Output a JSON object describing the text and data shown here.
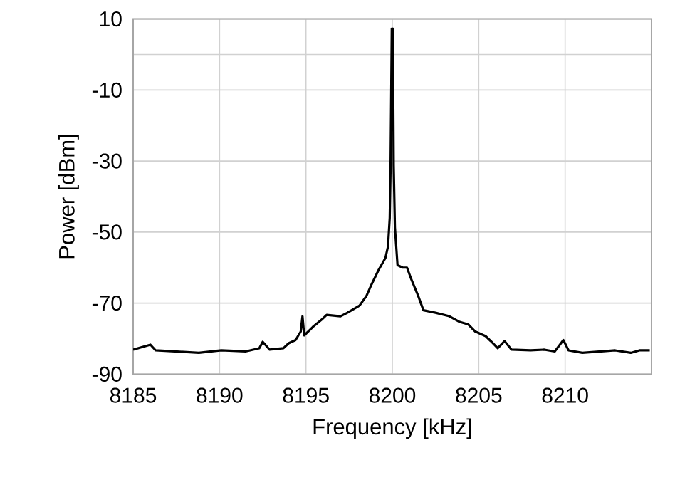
{
  "chart_data": {
    "type": "line",
    "xlabel": "Frequency [kHz]",
    "ylabel": "Power [dBm]",
    "xlim": [
      8185,
      8215
    ],
    "ylim": [
      -90,
      10
    ],
    "xticks": [
      8185,
      8190,
      8195,
      8200,
      8205,
      8210
    ],
    "yticks": [
      10,
      {
        "value": 0,
        "label": null
      },
      -10,
      -30,
      -50,
      -70,
      -90
    ],
    "grid": true,
    "marker": "none",
    "line_style": "solid",
    "series": [
      {
        "color": "#000000",
        "x": [
          8185.0,
          8186.0,
          8186.3,
          8187.4,
          8188.8,
          8190.1,
          8191.5,
          8192.3,
          8192.5,
          8192.9,
          8193.7,
          8194.0,
          8194.4,
          8194.7,
          8194.8,
          8194.9,
          8195.4,
          8195.9,
          8196.2,
          8197.0,
          8197.4,
          8198.1,
          8198.5,
          8198.8,
          8199.2,
          8199.6,
          8199.75,
          8199.85,
          8199.9,
          8199.97,
          8200.03,
          8200.08,
          8200.15,
          8200.3,
          8200.6,
          8200.85,
          8201.1,
          8201.5,
          8201.8,
          8202.5,
          8203.3,
          8203.9,
          8204.4,
          8204.8,
          8205.4,
          8205.7,
          8206.1,
          8206.5,
          8206.9,
          8208.0,
          8208.8,
          8209.4,
          8209.9,
          8210.2,
          8211.0,
          8212.1,
          8212.9,
          8213.8,
          8214.3,
          8214.9
        ],
        "values": [
          -83.1,
          -81.7,
          -83.3,
          -83.6,
          -84.0,
          -83.3,
          -83.6,
          -82.7,
          -80.9,
          -83.1,
          -82.7,
          -81.3,
          -80.4,
          -78.0,
          -73.7,
          -79.1,
          -76.7,
          -74.7,
          -73.3,
          -73.7,
          -72.7,
          -70.7,
          -68.0,
          -64.7,
          -60.7,
          -57.3,
          -54.0,
          -46.0,
          -31.3,
          7.3,
          7.3,
          -31.3,
          -48.7,
          -59.3,
          -60.0,
          -60.0,
          -63.3,
          -68.0,
          -72.0,
          -72.7,
          -73.7,
          -75.3,
          -76.0,
          -78.0,
          -79.3,
          -80.7,
          -82.7,
          -80.7,
          -83.1,
          -83.3,
          -83.1,
          -83.6,
          -80.4,
          -83.3,
          -84.0,
          -83.6,
          -83.3,
          -84.0,
          -83.3,
          -83.3
        ]
      }
    ]
  }
}
